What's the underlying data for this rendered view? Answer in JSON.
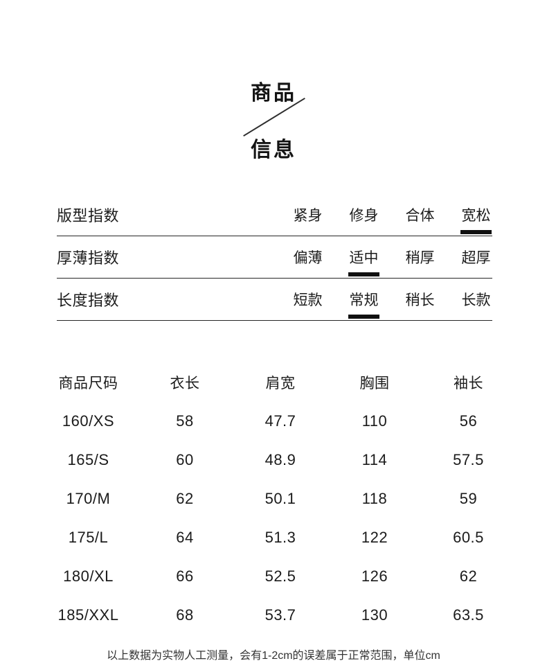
{
  "title": {
    "line1": "商品",
    "line2": "信息"
  },
  "fit_table": {
    "rows": [
      {
        "label": "版型指数",
        "options": [
          "紧身",
          "修身",
          "合体",
          "宽松"
        ],
        "selected_index": 3,
        "selected_label": "宽松"
      },
      {
        "label": "厚薄指数",
        "options": [
          "偏薄",
          "适中",
          "稍厚",
          "超厚"
        ],
        "selected_index": 1,
        "selected_label": "适中"
      },
      {
        "label": "长度指数",
        "options": [
          "短款",
          "常规",
          "稍长",
          "长款"
        ],
        "selected_index": 1,
        "selected_label": "常规"
      }
    ]
  },
  "size_table": {
    "headers": [
      "商品尺码",
      "衣长",
      "肩宽",
      "胸围",
      "袖长"
    ],
    "rows": [
      [
        "160/XS",
        "58",
        "47.7",
        "110",
        "56"
      ],
      [
        "165/S",
        "60",
        "48.9",
        "114",
        "57.5"
      ],
      [
        "170/M",
        "62",
        "50.1",
        "118",
        "59"
      ],
      [
        "175/L",
        "64",
        "51.3",
        "122",
        "60.5"
      ],
      [
        "180/XL",
        "66",
        "52.5",
        "126",
        "62"
      ],
      [
        "185/XXL",
        "68",
        "53.7",
        "130",
        "63.5"
      ]
    ]
  },
  "footer": {
    "note": "以上数据为实物人工测量，会有1-2cm的误差属于正常范围，单位cm"
  },
  "colors": {
    "text": "#1a1a1a",
    "line": "#262626",
    "selected_marker": "#101010",
    "background": "#ffffff"
  }
}
